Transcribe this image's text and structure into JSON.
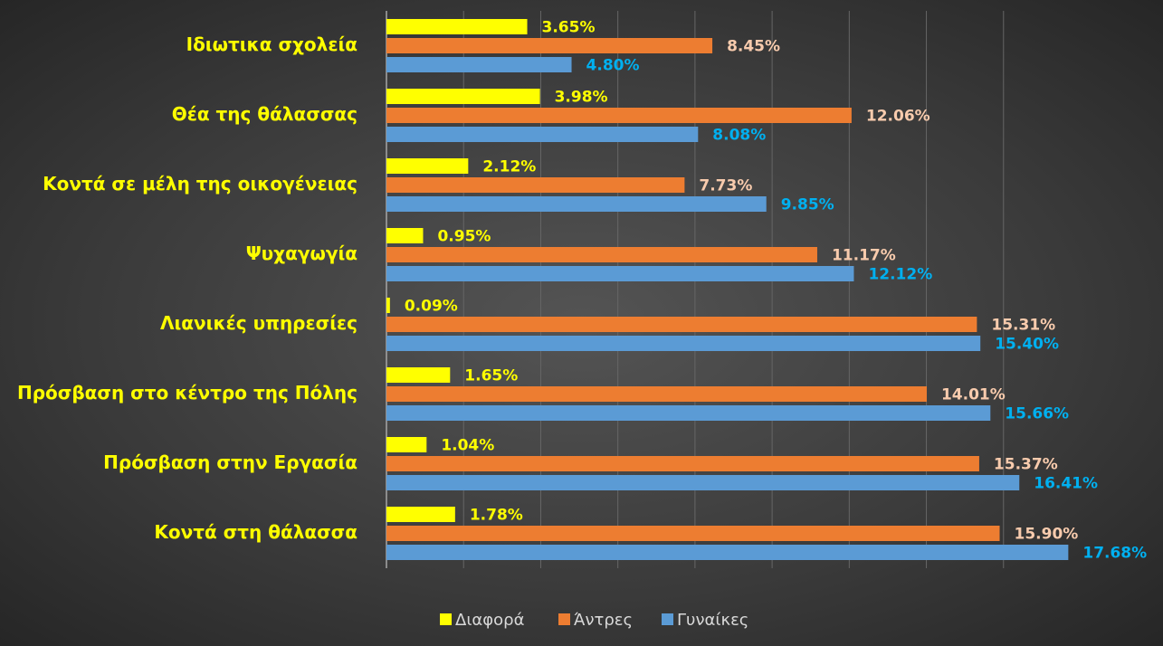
{
  "chart_data": {
    "type": "hbar",
    "categories": [
      "Ιδιωτικα σχολεία",
      "Θέα της θάλασσας",
      "Κοντά σε μέλη της οικογένειας",
      "Ψυχαγωγία",
      "Λιανικές υπηρεσίες",
      "Πρόσβαση στο κέντρο της Πόλης",
      "Πρόσβαση στην Εργασία",
      "Κοντά στη θάλασσα"
    ],
    "series": [
      {
        "name": "Διαφορά",
        "color": "#ffff00",
        "label_color": "#ffff00",
        "values": [
          3.65,
          3.98,
          2.12,
          0.95,
          0.09,
          1.65,
          1.04,
          1.78
        ],
        "value_labels": [
          "3.65%",
          "3.98%",
          "2.12%",
          "0.95%",
          "0.09%",
          "1.65%",
          "1.04%",
          "1.78%"
        ]
      },
      {
        "name": "Άντρες",
        "color": "#ed7d31",
        "label_color": "#f8cbad",
        "values": [
          8.45,
          12.06,
          7.73,
          11.17,
          15.31,
          14.01,
          15.37,
          15.9
        ],
        "value_labels": [
          "8.45%",
          "12.06%",
          "7.73%",
          "11.17%",
          "15.31%",
          "14.01%",
          "15.37%",
          "15.90%"
        ]
      },
      {
        "name": "Γυναίκες",
        "color": "#5b9bd5",
        "label_color": "#00b0f0",
        "values": [
          4.8,
          8.08,
          9.85,
          12.12,
          15.4,
          15.66,
          16.41,
          17.68
        ],
        "value_labels": [
          "4.80%",
          "8.08%",
          "9.85%",
          "12.12%",
          "15.40%",
          "15.66%",
          "16.41%",
          "17.68%"
        ]
      }
    ],
    "xlim": [
      0,
      18
    ],
    "xticks": [
      0,
      2,
      4,
      6,
      8,
      10,
      12,
      14,
      16
    ],
    "grid": true,
    "legend": "bottom"
  }
}
